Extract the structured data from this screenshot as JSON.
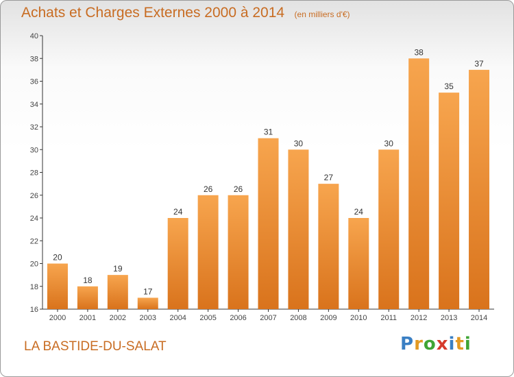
{
  "title": "Achats et Charges Externes 2000 à 2014",
  "subtitle": "(en milliers d'€)",
  "commune": "LA BASTIDE-DU-SALAT",
  "logo": {
    "text": "Proxiti",
    "letters": [
      {
        "ch": "P",
        "color": "#3a7fc4"
      },
      {
        "ch": "r",
        "color": "#e39a23"
      },
      {
        "ch": "o",
        "color": "#3fa535"
      },
      {
        "ch": "x",
        "color": "#d63a2b"
      },
      {
        "ch": "i",
        "color": "#3a7fc4"
      },
      {
        "ch": "t",
        "color": "#e39a23"
      },
      {
        "ch": "i",
        "color": "#3fa535"
      }
    ]
  },
  "colors": {
    "bar_light": "#f7a54e",
    "bar_dark": "#d9731c",
    "axis": "#333333",
    "grid": "#dddddd",
    "text_accent": "#c86c22"
  },
  "chart_data": {
    "type": "bar",
    "categories": [
      "2000",
      "2001",
      "2002",
      "2003",
      "2004",
      "2005",
      "2006",
      "2007",
      "2008",
      "2009",
      "2010",
      "2011",
      "2012",
      "2013",
      "2014"
    ],
    "values": [
      20,
      18,
      19,
      17,
      24,
      26,
      26,
      31,
      30,
      27,
      24,
      30,
      38,
      35,
      37
    ],
    "ylim": [
      16,
      40
    ],
    "yticks": [
      16,
      18,
      20,
      22,
      24,
      26,
      28,
      30,
      32,
      34,
      36,
      38,
      40
    ],
    "xlabel": "",
    "ylabel": "",
    "grid": false,
    "data_labels": true
  }
}
